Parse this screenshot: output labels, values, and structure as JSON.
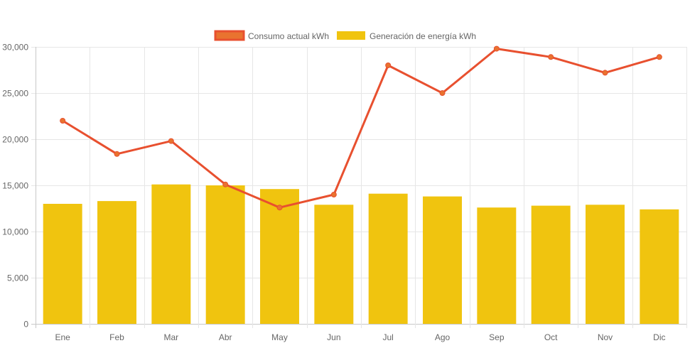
{
  "chart_data": {
    "type": "bar",
    "categories": [
      "Ene",
      "Feb",
      "Mar",
      "Abr",
      "May",
      "Jun",
      "Jul",
      "Ago",
      "Sep",
      "Oct",
      "Nov",
      "Dic"
    ],
    "series": [
      {
        "name": "Consumo actual kWh",
        "kind": "line",
        "color": "#e8502f",
        "point_color": "#e9732f",
        "values": [
          22000,
          18400,
          19800,
          15100,
          12600,
          14000,
          28000,
          25000,
          29800,
          28900,
          27200,
          28900
        ]
      },
      {
        "name": "Generación de energía kWh",
        "kind": "bar",
        "color": "#f0c40f",
        "values": [
          13000,
          13300,
          15100,
          15000,
          14600,
          12900,
          14100,
          13800,
          12600,
          12800,
          12900,
          12400
        ]
      }
    ],
    "ylim": [
      0,
      30000
    ],
    "yticks": [
      "0",
      "5,000",
      "10,000",
      "15,000",
      "20,000",
      "25,000",
      "30,000"
    ],
    "ytick_values": [
      0,
      5000,
      10000,
      15000,
      20000,
      25000,
      30000
    ],
    "legend": "top-center",
    "grid": true,
    "title": "",
    "xlabel": "",
    "ylabel": ""
  }
}
